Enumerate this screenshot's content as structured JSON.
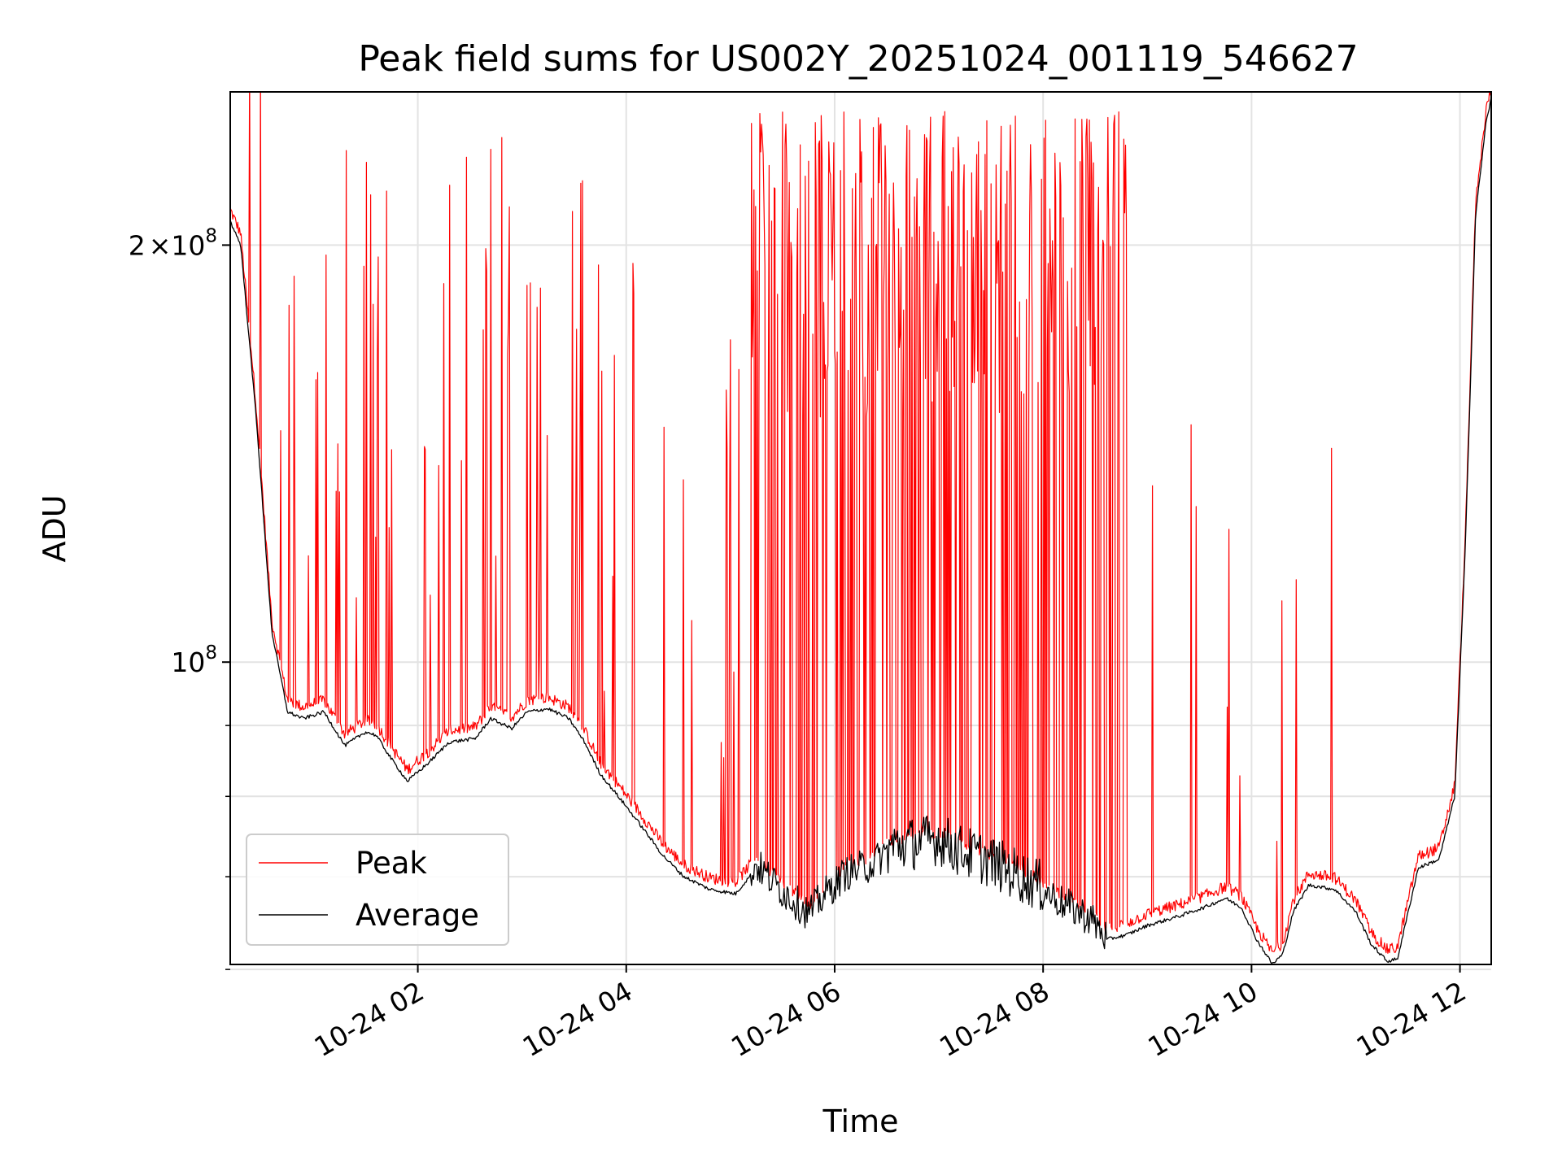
{
  "chart_data": {
    "type": "line",
    "title": "Peak field sums for US002Y_20251024_001119_546627",
    "xlabel": "Time",
    "ylabel": "ADU",
    "yscale": "log",
    "xlim_hours": [
      0.2,
      12.3
    ],
    "ylim": [
      60500000,
      258000000
    ],
    "grid": true,
    "legend_position": "lower-left",
    "x_ticks": [
      {
        "label": "10-24 02",
        "hour": 2
      },
      {
        "label": "10-24 04",
        "hour": 4
      },
      {
        "label": "10-24 06",
        "hour": 6
      },
      {
        "label": "10-24 08",
        "hour": 8
      },
      {
        "label": "10-24 10",
        "hour": 10
      },
      {
        "label": "10-24 12",
        "hour": 12
      }
    ],
    "y_major_ticks": [
      {
        "base": "10",
        "exp": "8",
        "value": 100000000
      },
      {
        "coef": "2",
        "base": "10",
        "exp": "8",
        "value": 200000000
      }
    ],
    "y_minor_ticks": [
      60000000,
      70000000,
      80000000,
      90000000
    ],
    "series": [
      {
        "name": "Peak",
        "color": "#ff0000",
        "description": "Peak field sum; tracks Average baseline with frequent spikes, dense saturation between ~05:00 and ~09:00",
        "spike_bands": [
          {
            "from": 5.2,
            "to": 8.8,
            "level_mean": 200000000,
            "density": "dense"
          },
          {
            "from": 0.3,
            "to": 3.9,
            "level_mean": 110000000,
            "density": "moderate"
          }
        ]
      },
      {
        "name": "Average",
        "color": "#000000",
        "hours": [
          0.2,
          0.3,
          0.45,
          0.6,
          0.75,
          0.9,
          1.1,
          1.3,
          1.5,
          1.6,
          1.75,
          1.9,
          2.1,
          2.3,
          2.55,
          2.7,
          2.9,
          3.05,
          3.25,
          3.45,
          3.6,
          3.75,
          3.95,
          4.15,
          4.35,
          4.55,
          4.8,
          5.05,
          5.25,
          5.45,
          5.6,
          5.75,
          5.9,
          6.1,
          6.35,
          6.55,
          6.8,
          7.0,
          7.2,
          7.45,
          7.7,
          7.95,
          8.2,
          8.45,
          8.6,
          8.8,
          9.0,
          9.3,
          9.55,
          9.75,
          9.9,
          10.05,
          10.2,
          10.3,
          10.4,
          10.55,
          10.8,
          11.0,
          11.15,
          11.3,
          11.4,
          11.6,
          11.8,
          11.95,
          12.05,
          12.15,
          12.25,
          12.3
        ],
        "values": [
          208000000,
          200000000,
          150000000,
          105000000,
          92000000,
          91000000,
          92000000,
          87000000,
          89000000,
          88500000,
          85000000,
          82000000,
          84500000,
          87500000,
          88000000,
          91000000,
          89500000,
          92000000,
          92500000,
          91000000,
          87500000,
          83000000,
          79500000,
          76000000,
          72500000,
          70000000,
          68500000,
          68000000,
          71000000,
          68500000,
          67000000,
          65500000,
          67500000,
          70000000,
          71000000,
          73000000,
          73500000,
          74000000,
          72500000,
          71500000,
          70000000,
          68500000,
          66500000,
          65000000,
          63000000,
          63500000,
          64500000,
          65500000,
          66500000,
          67500000,
          66500000,
          63000000,
          60500000,
          61500000,
          66000000,
          69000000,
          68500000,
          66000000,
          62500000,
          60800000,
          61000000,
          71000000,
          72000000,
          80000000,
          120000000,
          210000000,
          245000000,
          255000000
        ]
      }
    ]
  }
}
